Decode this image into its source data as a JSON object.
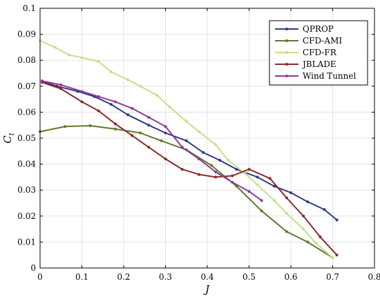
{
  "chart_data": {
    "type": "line",
    "xlabel": "J",
    "ylabel": "C",
    "ylabel_sub": "t",
    "xlim": [
      0,
      0.8
    ],
    "ylim": [
      0,
      0.1
    ],
    "xticks": [
      0,
      0.1,
      0.2,
      0.3,
      0.4,
      0.5,
      0.6,
      0.7,
      0.8
    ],
    "xtick_labels": [
      "0",
      "0.1",
      "0.2",
      "0.3",
      "0.4",
      "0.5",
      "0.6",
      "0.7",
      "0.8"
    ],
    "yticks": [
      0,
      0.01,
      0.02,
      0.03,
      0.04,
      0.05,
      0.06,
      0.07,
      0.08,
      0.09,
      0.1
    ],
    "ytick_labels": [
      "0",
      "0.01",
      "0.02",
      "0.03",
      "0.04",
      "0.05",
      "0.06",
      "0.07",
      "0.08",
      "0.09",
      "0.1"
    ],
    "grid": true,
    "legend_position": "top-right",
    "series": [
      {
        "name": "QPROP",
        "color": "#2e3a87",
        "x": [
          0.005,
          0.04,
          0.09,
          0.13,
          0.17,
          0.21,
          0.26,
          0.3,
          0.35,
          0.39,
          0.43,
          0.47,
          0.52,
          0.56,
          0.6,
          0.64,
          0.68,
          0.71
        ],
        "y": [
          0.072,
          0.07,
          0.068,
          0.066,
          0.063,
          0.059,
          0.055,
          0.052,
          0.049,
          0.0445,
          0.0415,
          0.038,
          0.035,
          0.0315,
          0.029,
          0.0255,
          0.0225,
          0.0185
        ]
      },
      {
        "name": "CFD-AMI",
        "color": "#5b7a2b",
        "x": [
          0.0,
          0.06,
          0.12,
          0.18,
          0.24,
          0.29,
          0.35,
          0.41,
          0.47,
          0.53,
          0.59,
          0.64,
          0.7
        ],
        "y": [
          0.0525,
          0.0545,
          0.0548,
          0.0535,
          0.052,
          0.049,
          0.0455,
          0.0395,
          0.0315,
          0.022,
          0.014,
          0.01,
          0.004
        ]
      },
      {
        "name": "CFD-FR",
        "color": "#c5e08a",
        "x": [
          0.0,
          0.035,
          0.07,
          0.1,
          0.14,
          0.17,
          0.21,
          0.24,
          0.28,
          0.31,
          0.35,
          0.38,
          0.42,
          0.45,
          0.49,
          0.52,
          0.56,
          0.59,
          0.63,
          0.66,
          0.7
        ],
        "y": [
          0.0875,
          0.085,
          0.082,
          0.081,
          0.0795,
          0.0755,
          0.0725,
          0.07,
          0.0665,
          0.062,
          0.0565,
          0.0525,
          0.0475,
          0.0415,
          0.0365,
          0.032,
          0.026,
          0.021,
          0.015,
          0.0095,
          0.004
        ]
      },
      {
        "name": "JBLADE",
        "color": "#8b2a2a",
        "x": [
          0.005,
          0.05,
          0.1,
          0.14,
          0.18,
          0.22,
          0.26,
          0.3,
          0.34,
          0.38,
          0.42,
          0.46,
          0.5,
          0.55,
          0.59,
          0.63,
          0.67,
          0.71
        ],
        "y": [
          0.0715,
          0.069,
          0.064,
          0.0605,
          0.0555,
          0.051,
          0.0465,
          0.042,
          0.038,
          0.036,
          0.035,
          0.0355,
          0.038,
          0.0345,
          0.027,
          0.02,
          0.012,
          0.005
        ]
      },
      {
        "name": "Wind Tunnel",
        "color": "#8c3a9c",
        "x": [
          0.005,
          0.05,
          0.1,
          0.14,
          0.18,
          0.22,
          0.26,
          0.3,
          0.34,
          0.38,
          0.42,
          0.46,
          0.5,
          0.53
        ],
        "y": [
          0.072,
          0.0705,
          0.068,
          0.066,
          0.064,
          0.0615,
          0.058,
          0.0545,
          0.0465,
          0.042,
          0.037,
          0.033,
          0.0295,
          0.026
        ]
      }
    ]
  }
}
